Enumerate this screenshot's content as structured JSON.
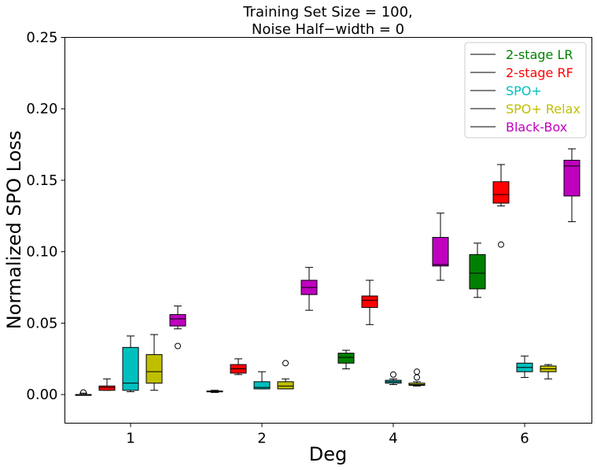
{
  "chart_data": {
    "type": "box",
    "title": [
      "Training Set Size = 100,",
      "Noise Half−width = 0"
    ],
    "xlabel": "Deg",
    "ylabel": "Normalized SPO Loss",
    "categories": [
      "1",
      "2",
      "4",
      "6"
    ],
    "ylim": [
      -0.02,
      0.25
    ],
    "yticks": [
      "0.00",
      "0.05",
      "0.10",
      "0.15",
      "0.20",
      "0.25"
    ],
    "ytick_values": [
      0.0,
      0.05,
      0.1,
      0.15,
      0.2,
      0.25
    ],
    "grid": false,
    "legend_position": "top-right",
    "series": [
      {
        "name": "2-stage LR",
        "color": "#008000",
        "boxes": [
          {
            "whislo": 0.0,
            "q1": 0.0,
            "med": 0.0,
            "q3": 0.0,
            "whishi": 0.001,
            "fliers": [
              0.0015
            ]
          },
          {
            "whislo": 0.0015,
            "q1": 0.002,
            "med": 0.002,
            "q3": 0.0025,
            "whishi": 0.003,
            "fliers": []
          },
          {
            "whislo": 0.018,
            "q1": 0.022,
            "med": 0.026,
            "q3": 0.029,
            "whishi": 0.031,
            "fliers": []
          },
          {
            "whislo": 0.068,
            "q1": 0.074,
            "med": 0.085,
            "q3": 0.098,
            "whishi": 0.106,
            "fliers": []
          }
        ]
      },
      {
        "name": "2-stage RF",
        "color": "#ff0000",
        "boxes": [
          {
            "whislo": 0.003,
            "q1": 0.003,
            "med": 0.005,
            "q3": 0.006,
            "whishi": 0.011,
            "fliers": []
          },
          {
            "whislo": 0.014,
            "q1": 0.015,
            "med": 0.018,
            "q3": 0.021,
            "whishi": 0.025,
            "fliers": []
          },
          {
            "whislo": 0.049,
            "q1": 0.061,
            "med": 0.066,
            "q3": 0.069,
            "whishi": 0.08,
            "fliers": []
          },
          {
            "whislo": 0.132,
            "q1": 0.134,
            "med": 0.14,
            "q3": 0.149,
            "whishi": 0.161,
            "fliers": [
              0.105
            ]
          }
        ]
      },
      {
        "name": "SPO+",
        "color": "#00bfbf",
        "boxes": [
          {
            "whislo": 0.002,
            "q1": 0.003,
            "med": 0.008,
            "q3": 0.033,
            "whishi": 0.041,
            "fliers": []
          },
          {
            "whislo": 0.004,
            "q1": 0.004,
            "med": 0.005,
            "q3": 0.009,
            "whishi": 0.016,
            "fliers": []
          },
          {
            "whislo": 0.007,
            "q1": 0.008,
            "med": 0.009,
            "q3": 0.01,
            "whishi": 0.011,
            "fliers": [
              0.014
            ]
          },
          {
            "whislo": 0.012,
            "q1": 0.016,
            "med": 0.019,
            "q3": 0.022,
            "whishi": 0.027,
            "fliers": []
          }
        ]
      },
      {
        "name": "SPO+ Relax",
        "color": "#bfbf00",
        "boxes": [
          {
            "whislo": 0.003,
            "q1": 0.008,
            "med": 0.016,
            "q3": 0.028,
            "whishi": 0.042,
            "fliers": []
          },
          {
            "whislo": 0.004,
            "q1": 0.004,
            "med": 0.006,
            "q3": 0.009,
            "whishi": 0.011,
            "fliers": [
              0.022
            ]
          },
          {
            "whislo": 0.006,
            "q1": 0.0065,
            "med": 0.007,
            "q3": 0.008,
            "whishi": 0.009,
            "fliers": [
              0.012,
              0.016
            ]
          },
          {
            "whislo": 0.011,
            "q1": 0.016,
            "med": 0.018,
            "q3": 0.02,
            "whishi": 0.021,
            "fliers": []
          }
        ]
      },
      {
        "name": "Black-Box",
        "color": "#bf00bf",
        "boxes": [
          {
            "whislo": 0.046,
            "q1": 0.048,
            "med": 0.053,
            "q3": 0.056,
            "whishi": 0.062,
            "fliers": [
              0.034
            ]
          },
          {
            "whislo": 0.059,
            "q1": 0.07,
            "med": 0.075,
            "q3": 0.08,
            "whishi": 0.089,
            "fliers": []
          },
          {
            "whislo": 0.08,
            "q1": 0.09,
            "med": 0.091,
            "q3": 0.11,
            "whishi": 0.127,
            "fliers": []
          },
          {
            "whislo": 0.121,
            "q1": 0.139,
            "med": 0.16,
            "q3": 0.164,
            "whishi": 0.172,
            "fliers": []
          }
        ]
      }
    ]
  }
}
